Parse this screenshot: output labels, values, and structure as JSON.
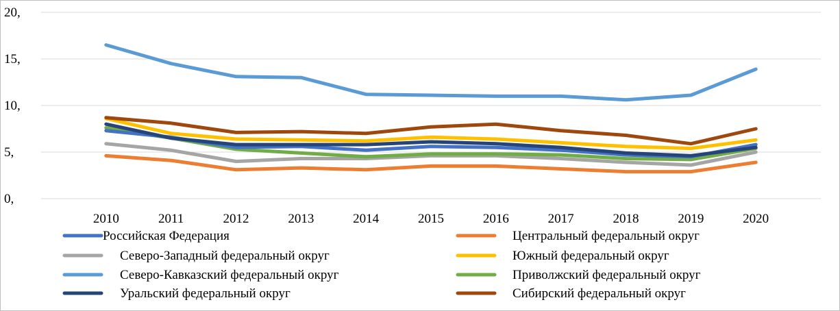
{
  "chart_data": {
    "type": "line",
    "title": "",
    "xlabel": "",
    "ylabel": "",
    "x": [
      "2010",
      "2011",
      "2012",
      "2013",
      "2014",
      "2015",
      "2016",
      "2017",
      "2018",
      "2019",
      "2020"
    ],
    "ylim": [
      0,
      20
    ],
    "yticks": [
      {
        "value": 0,
        "label": "0,"
      },
      {
        "value": 5,
        "label": "5,"
      },
      {
        "value": 10,
        "label": "10,"
      },
      {
        "value": 15,
        "label": "15,"
      },
      {
        "value": 20,
        "label": "20,"
      }
    ],
    "grid": true,
    "legend_position": "bottom",
    "series": [
      {
        "name": "Российская Федерация",
        "color": "#4472c4",
        "values": [
          7.3,
          6.6,
          5.5,
          5.6,
          5.2,
          5.6,
          5.5,
          5.2,
          4.7,
          4.5,
          5.8
        ]
      },
      {
        "name": "Центральный федеральный округ",
        "color": "#ed7d31",
        "values": [
          4.6,
          4.1,
          3.1,
          3.3,
          3.1,
          3.5,
          3.5,
          3.2,
          2.9,
          2.9,
          3.9
        ]
      },
      {
        "name": "Северо-Западный федеральный округ",
        "color": "#a5a5a5",
        "values": [
          5.9,
          5.2,
          4.0,
          4.3,
          4.3,
          4.6,
          4.6,
          4.3,
          3.9,
          3.6,
          5.0
        ]
      },
      {
        "name": "Южный федеральный округ",
        "color": "#ffc000",
        "values": [
          8.6,
          7.0,
          6.4,
          6.3,
          6.2,
          6.6,
          6.4,
          6.0,
          5.6,
          5.4,
          6.3
        ]
      },
      {
        "name": "Северо-Кавказский федеральный округ",
        "color": "#5b9bd5",
        "values": [
          16.5,
          14.5,
          13.1,
          13.0,
          11.2,
          11.1,
          11.0,
          11.0,
          10.6,
          11.1,
          13.9
        ]
      },
      {
        "name": "Приволжский федеральный округ",
        "color": "#70ad47",
        "values": [
          7.6,
          6.5,
          5.3,
          4.9,
          4.5,
          4.8,
          4.8,
          4.7,
          4.3,
          4.2,
          5.4
        ]
      },
      {
        "name": "Уральский федеральный округ",
        "color": "#264478",
        "values": [
          8.0,
          6.5,
          5.8,
          5.8,
          5.8,
          6.1,
          5.9,
          5.5,
          4.9,
          4.6,
          5.5
        ]
      },
      {
        "name": "Сибирский федеральный округ",
        "color": "#9e480e",
        "values": [
          8.7,
          8.1,
          7.1,
          7.2,
          7.0,
          7.7,
          8.0,
          7.3,
          6.8,
          5.9,
          7.5
        ]
      }
    ]
  }
}
